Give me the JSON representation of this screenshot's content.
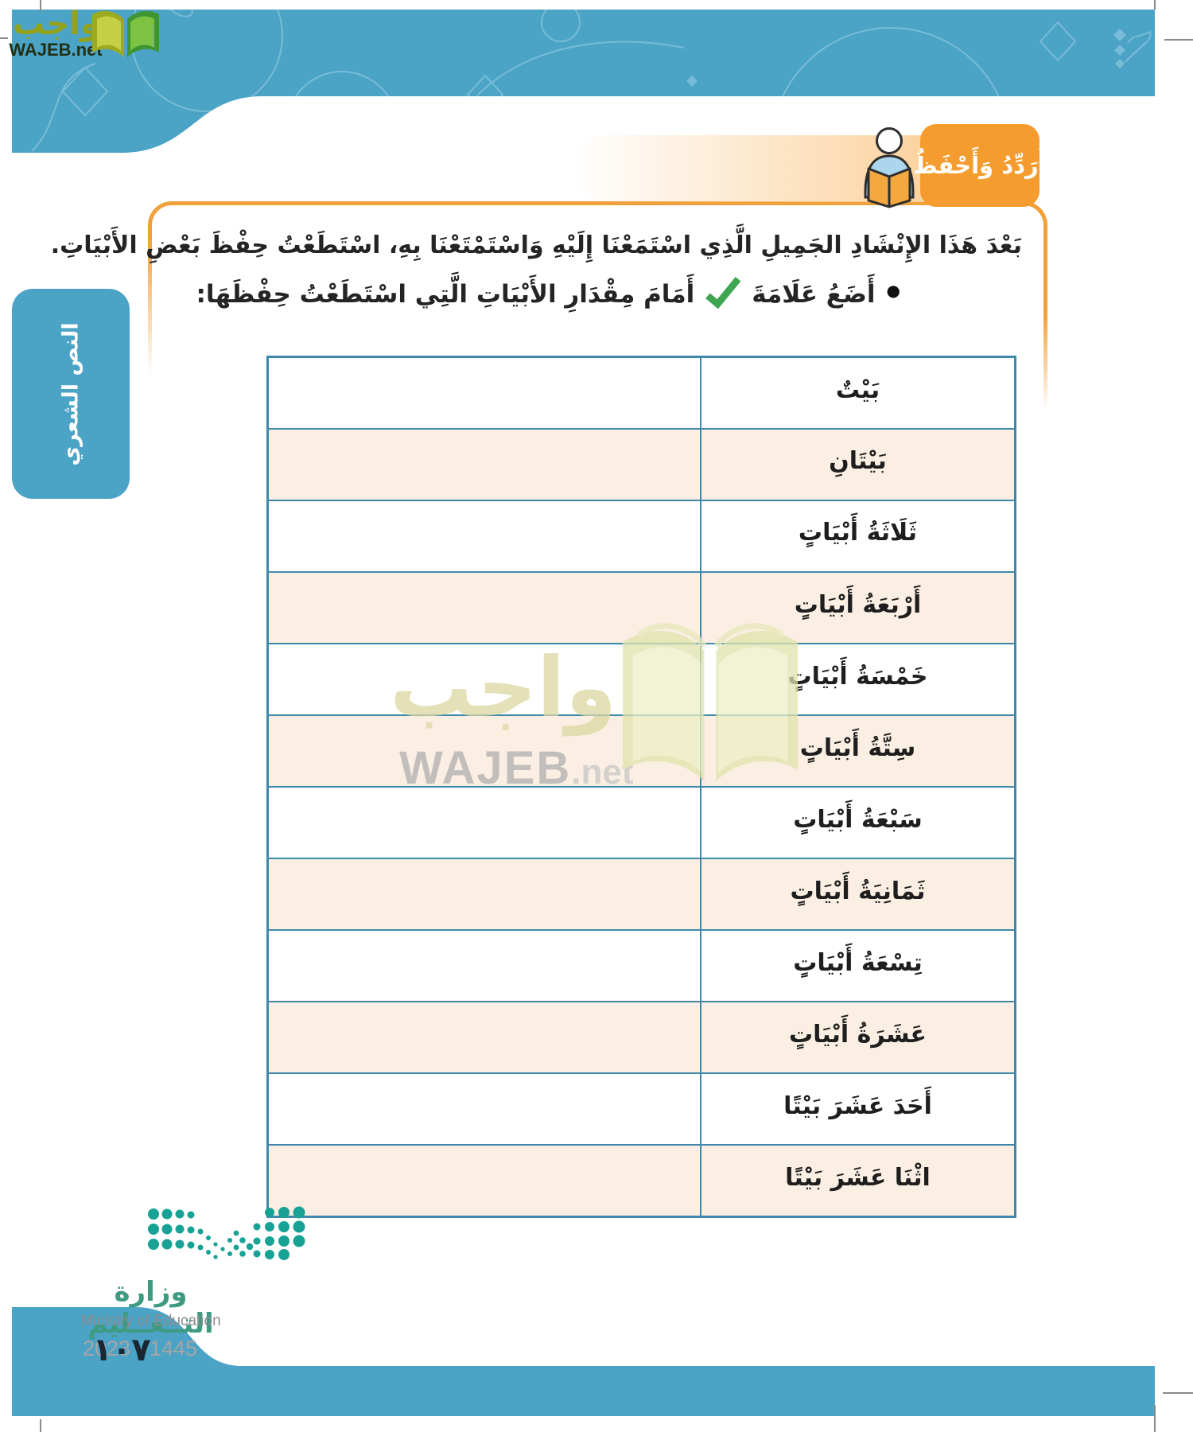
{
  "header_logo": {
    "arabic": "واجب",
    "domain": "WAJEB.net"
  },
  "badge": {
    "label": "أُرَدِّدُ وَأَحْفَظُ"
  },
  "sidebar_tab": {
    "label": "النص الشعري"
  },
  "instructions": {
    "intro": "بَعْدَ هَذَا الإِنْشَادِ الجَمِيلِ الَّذِي اسْتَمَعْنَا إِلَيْهِ وَاسْتَمْتَعْنَا بِهِ، اسْتَطَعْتُ حِفْظَ بَعْضِ الأَبْيَاتِ.",
    "bullet_char": "●",
    "task_before_check": "أَضَعُ عَلَامَةَ",
    "task_after_check": "أَمَامَ مِقْدَارِ الأَبْيَاتِ الَّتِي اسْتَطَعْتُ حِفْظَهَا:"
  },
  "table": {
    "rows": [
      {
        "label": "بَيْتٌ",
        "answer": ""
      },
      {
        "label": "بَيْتَانِ",
        "answer": ""
      },
      {
        "label": "ثَلَاثَةُ أَبْيَاتٍ",
        "answer": ""
      },
      {
        "label": "أَرْبَعَةُ أَبْيَاتٍ",
        "answer": ""
      },
      {
        "label": "خَمْسَةُ أَبْيَاتٍ",
        "answer": ""
      },
      {
        "label": "سِتَّةُ أَبْيَاتٍ",
        "answer": ""
      },
      {
        "label": "سَبْعَةُ أَبْيَاتٍ",
        "answer": ""
      },
      {
        "label": "ثَمَانِيَةُ أَبْيَاتٍ",
        "answer": ""
      },
      {
        "label": "تِسْعَةُ أَبْيَاتٍ",
        "answer": ""
      },
      {
        "label": "عَشَرَةُ أَبْيَاتٍ",
        "answer": ""
      },
      {
        "label": "أَحَدَ عَشَرَ بَيْتًا",
        "answer": ""
      },
      {
        "label": "اثْنَا عَشَرَ بَيْتًا",
        "answer": ""
      }
    ]
  },
  "watermark": {
    "arabic": "واجب",
    "latin_bold": "WAJEB",
    "latin_suffix": ".net"
  },
  "footer": {
    "ministry_arabic": "وزارة التــعــليم",
    "ministry_english": "Ministry of Education",
    "edition_years": "2023 - 1445",
    "page_number": "١٠٧"
  },
  "colors": {
    "header_blue": "#4BA3C6",
    "badge_orange": "#F59C2E",
    "box_border_orange": "#F1A13B",
    "table_border_teal": "#3E89A9",
    "row_peach": "#FBEFE3",
    "check_green": "#3EA552",
    "ministry_dots_teal": "#17A295",
    "ministry_text_green": "#3E9B82",
    "logo_olive": "#94A31D",
    "watermark_khaki": "#DBD7A2"
  }
}
